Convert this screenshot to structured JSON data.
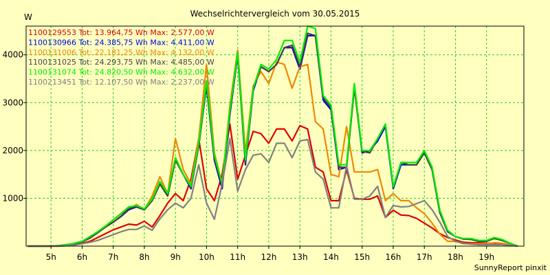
{
  "chart_data": {
    "type": "line",
    "title": "Wechselrichtervergleich vom 30.05.2015",
    "ylabel": "W",
    "xlabel": "",
    "credit": "SunnyReport pinxit",
    "xlim": [
      4.2,
      20.2
    ],
    "ylim": [
      0,
      4600
    ],
    "yticks": [
      1000,
      2000,
      3000,
      4000
    ],
    "ytick_labels": [
      "1000",
      "2000",
      "3000",
      "4000"
    ],
    "xticks": [
      5,
      6,
      7,
      8,
      9,
      10,
      11,
      12,
      13,
      14,
      15,
      16,
      17,
      18,
      19
    ],
    "xtick_labels": [
      "5h",
      "6h",
      "7h",
      "8h",
      "9h",
      "10h",
      "11h",
      "12h",
      "13h",
      "14h",
      "15h",
      "16h",
      "17h",
      "18h",
      "19h"
    ],
    "grid": true,
    "legend_position": "top-left",
    "x": [
      4.25,
      4.5,
      4.75,
      5.0,
      5.25,
      5.5,
      5.75,
      6.0,
      6.25,
      6.5,
      6.75,
      7.0,
      7.25,
      7.5,
      7.75,
      8.0,
      8.25,
      8.5,
      8.75,
      9.0,
      9.25,
      9.5,
      9.75,
      10.0,
      10.25,
      10.5,
      10.75,
      11.0,
      11.25,
      11.5,
      11.75,
      12.0,
      12.25,
      12.5,
      12.75,
      13.0,
      13.25,
      13.5,
      13.75,
      14.0,
      14.25,
      14.5,
      14.75,
      15.0,
      15.25,
      15.5,
      15.75,
      16.0,
      16.25,
      16.5,
      16.75,
      17.0,
      17.25,
      17.5,
      17.75,
      18.0,
      18.25,
      18.5,
      18.75,
      19.0,
      19.25,
      19.5,
      19.75,
      20.0
    ],
    "series": [
      {
        "name": "1100129553",
        "legend": "1100129553 Tot: 13.964,75 Wh Max: 2.577,00 W",
        "color": "#dd0000",
        "values": [
          0,
          0,
          0,
          0,
          0,
          10,
          30,
          60,
          100,
          180,
          260,
          340,
          400,
          460,
          440,
          520,
          400,
          640,
          900,
          1100,
          950,
          1400,
          2250,
          1200,
          950,
          1500,
          2550,
          1400,
          1900,
          2400,
          2350,
          2150,
          2450,
          2450,
          2200,
          2520,
          2450,
          1650,
          1550,
          950,
          950,
          1600,
          1000,
          980,
          980,
          1050,
          600,
          750,
          650,
          640,
          580,
          480,
          380,
          260,
          180,
          130,
          80,
          70,
          70,
          60,
          60,
          50,
          30,
          0
        ]
      },
      {
        "name": "1100130966",
        "legend": "1100130966 Tot: 24.385,75 Wh Max: 4.411,00 W",
        "color": "#0000dd",
        "values": [
          0,
          0,
          0,
          0,
          10,
          30,
          50,
          90,
          170,
          280,
          400,
          500,
          620,
          760,
          820,
          760,
          950,
          1300,
          1050,
          1800,
          1500,
          1200,
          2100,
          3350,
          1800,
          1200,
          2750,
          4000,
          1700,
          3250,
          3750,
          3650,
          3800,
          4150,
          4150,
          3700,
          4400,
          4400,
          3050,
          2850,
          1600,
          1650,
          3350,
          1950,
          2000,
          2200,
          2500,
          1200,
          1700,
          1700,
          1700,
          1950,
          1600,
          700,
          300,
          200,
          150,
          150,
          100,
          100,
          170,
          120,
          60,
          0
        ]
      },
      {
        "name": "1100131006",
        "legend": "1100131006 Tot: 22.181,25 Wh Max: 4.132,00 W",
        "color": "#ee8800",
        "values": [
          0,
          0,
          0,
          0,
          10,
          30,
          50,
          90,
          180,
          300,
          420,
          550,
          680,
          780,
          870,
          760,
          1050,
          1450,
          1100,
          2250,
          1600,
          1300,
          2250,
          3800,
          1950,
          1300,
          2950,
          4100,
          1950,
          3350,
          3650,
          3400,
          3850,
          3800,
          3300,
          3750,
          3800,
          2600,
          2450,
          1500,
          1450,
          2500,
          1550,
          1550,
          1550,
          1600,
          950,
          1100,
          950,
          950,
          800,
          680,
          480,
          250,
          100,
          100,
          50,
          50,
          50,
          50,
          70,
          60,
          30,
          0
        ]
      },
      {
        "name": "1100131025",
        "legend": "1100131025 Tot: 24.293,75 Wh Max: 4.485,00 W",
        "color": "#444444",
        "values": [
          0,
          0,
          0,
          0,
          10,
          30,
          50,
          90,
          170,
          280,
          400,
          500,
          630,
          780,
          830,
          760,
          950,
          1300,
          1050,
          1800,
          1500,
          1230,
          2100,
          3400,
          1850,
          1250,
          2800,
          4050,
          1750,
          3300,
          3750,
          3650,
          3800,
          4150,
          4200,
          3750,
          4450,
          4400,
          3100,
          2900,
          1650,
          1650,
          3300,
          1980,
          1950,
          2250,
          2550,
          1220,
          1750,
          1700,
          1700,
          1950,
          1600,
          700,
          310,
          200,
          150,
          140,
          100,
          100,
          160,
          120,
          60,
          0
        ]
      },
      {
        "name": "1100131074",
        "legend": "1100131074 Tot: 24.820,50 Wh Max: 4.632,00 W",
        "color": "#00ee00",
        "values": [
          0,
          0,
          0,
          0,
          10,
          30,
          60,
          100,
          200,
          300,
          420,
          550,
          680,
          820,
          850,
          780,
          980,
          1350,
          1100,
          1850,
          1500,
          1250,
          2150,
          3450,
          1900,
          1300,
          2850,
          4050,
          1800,
          3300,
          3800,
          3700,
          3900,
          4300,
          4300,
          3850,
          4600,
          4550,
          3150,
          2950,
          1700,
          1700,
          3400,
          2000,
          2000,
          2250,
          2550,
          1250,
          1750,
          1750,
          1750,
          2000,
          1650,
          750,
          330,
          200,
          160,
          160,
          120,
          120,
          180,
          140,
          60,
          0
        ]
      },
      {
        "name": "1100213451",
        "legend": "1100213451 Tot: 12.107,50 Wh Max: 2.237,00 W",
        "color": "#808080",
        "values": [
          0,
          0,
          0,
          0,
          0,
          10,
          20,
          50,
          80,
          120,
          180,
          240,
          300,
          350,
          350,
          420,
          330,
          570,
          760,
          900,
          800,
          1000,
          1700,
          900,
          560,
          1300,
          2250,
          1150,
          1600,
          1900,
          1930,
          1750,
          2150,
          2150,
          1850,
          2200,
          2230,
          1550,
          1400,
          800,
          800,
          1680,
          980,
          980,
          1050,
          1250,
          600,
          850,
          820,
          830,
          890,
          950,
          760,
          500,
          200,
          100,
          60,
          40,
          30,
          30,
          30,
          30,
          20,
          0
        ]
      }
    ]
  }
}
